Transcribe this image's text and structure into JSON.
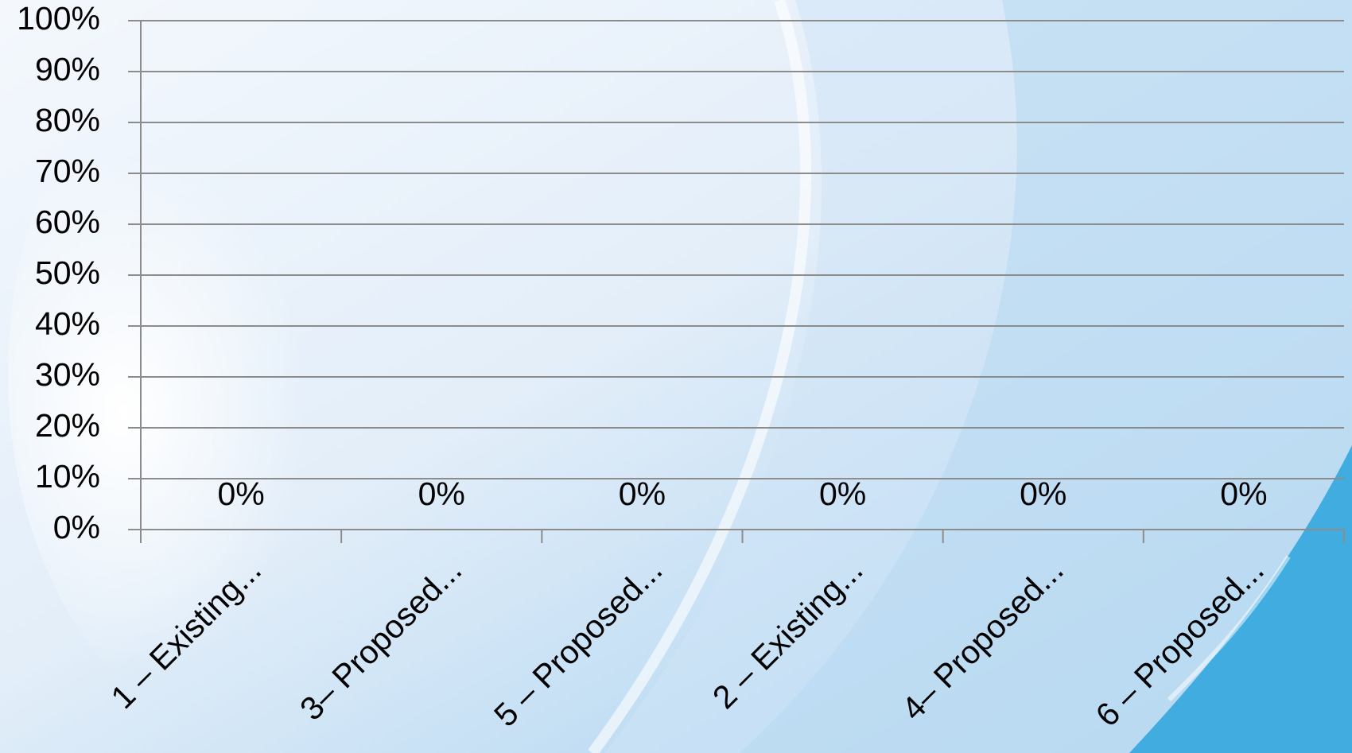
{
  "chart_data": {
    "type": "bar",
    "categories": [
      "1 – Existing...",
      "3– Proposed...",
      "5 – Proposed...",
      "2 – Existing...",
      "4– Proposed...",
      "6 – Proposed..."
    ],
    "values": [
      0,
      0,
      0,
      0,
      0,
      0
    ],
    "data_labels": [
      "0%",
      "0%",
      "0%",
      "0%",
      "0%",
      "0%"
    ],
    "ylim": [
      0,
      100
    ],
    "y_ticks": [
      "0%",
      "10%",
      "20%",
      "30%",
      "40%",
      "50%",
      "60%",
      "70%",
      "80%",
      "90%",
      "100%"
    ],
    "grid": true,
    "legend": "none",
    "title": "",
    "xlabel": "",
    "ylabel": "",
    "colors": {
      "gridline": "#8c8c8c",
      "axis": "#8c8c8c",
      "text": "#000000",
      "background_light": "#ffffff",
      "background_accent": "#2aa3dd"
    }
  }
}
